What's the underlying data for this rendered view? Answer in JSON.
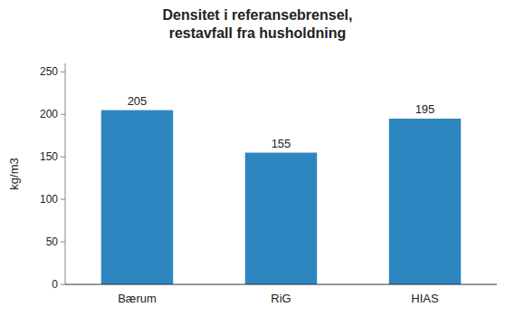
{
  "chart_data": {
    "type": "bar",
    "title": "Densitet i referansebrensel,\nrestavfall fra husholdning",
    "categories": [
      "Bærum",
      "RiG",
      "HIAS"
    ],
    "values": [
      205,
      155,
      195
    ],
    "color": "#2E86C1",
    "ylabel": "kg/m3",
    "ylim": [
      0,
      260
    ],
    "yticks": [
      0,
      50,
      100,
      150,
      200,
      250
    ],
    "grid": false,
    "data_labels": true
  }
}
